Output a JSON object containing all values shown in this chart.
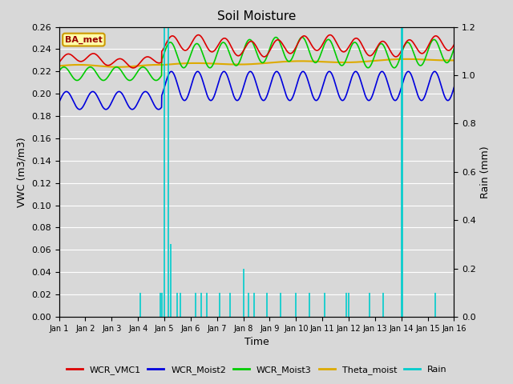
{
  "title": "Soil Moisture",
  "xlabel": "Time",
  "ylabel_left": "VWC (m3/m3)",
  "ylabel_right": "Rain (mm)",
  "ylim_left": [
    0.0,
    0.26
  ],
  "ylim_right": [
    0.0,
    1.2
  ],
  "yticks_left": [
    0.0,
    0.02,
    0.04,
    0.06,
    0.08,
    0.1,
    0.12,
    0.14,
    0.16,
    0.18,
    0.2,
    0.22,
    0.24,
    0.26
  ],
  "yticks_right": [
    0.0,
    0.2,
    0.4,
    0.6,
    0.8,
    1.0,
    1.2
  ],
  "xlim": [
    0,
    15
  ],
  "xtick_positions": [
    0,
    1,
    2,
    3,
    4,
    5,
    6,
    7,
    8,
    9,
    10,
    11,
    12,
    13,
    14,
    15
  ],
  "xtick_labels": [
    "Jan 1",
    "Jan 2",
    "Jan 3",
    "Jan 4",
    "Jan 5",
    "Jan 6",
    "Jan 7",
    "Jan 8",
    "Jan 9",
    "Jan 10",
    "Jan 11",
    "Jan 12",
    "Jan 13",
    "Jan 14",
    "Jan 15",
    "Jan 16"
  ],
  "site_label": "BA_met",
  "colors": {
    "WCR_VMC1": "#dd0000",
    "WCR_Moist2": "#0000dd",
    "WCR_Moist3": "#00cc00",
    "Theta_moist": "#ddaa00",
    "Rain": "#00cccc"
  },
  "fig_facecolor": "#d8d8d8",
  "ax_facecolor": "#d8d8d8",
  "grid_color": "#ffffff",
  "title_fontsize": 11,
  "label_fontsize": 9,
  "tick_fontsize": 8,
  "legend_fontsize": 8
}
